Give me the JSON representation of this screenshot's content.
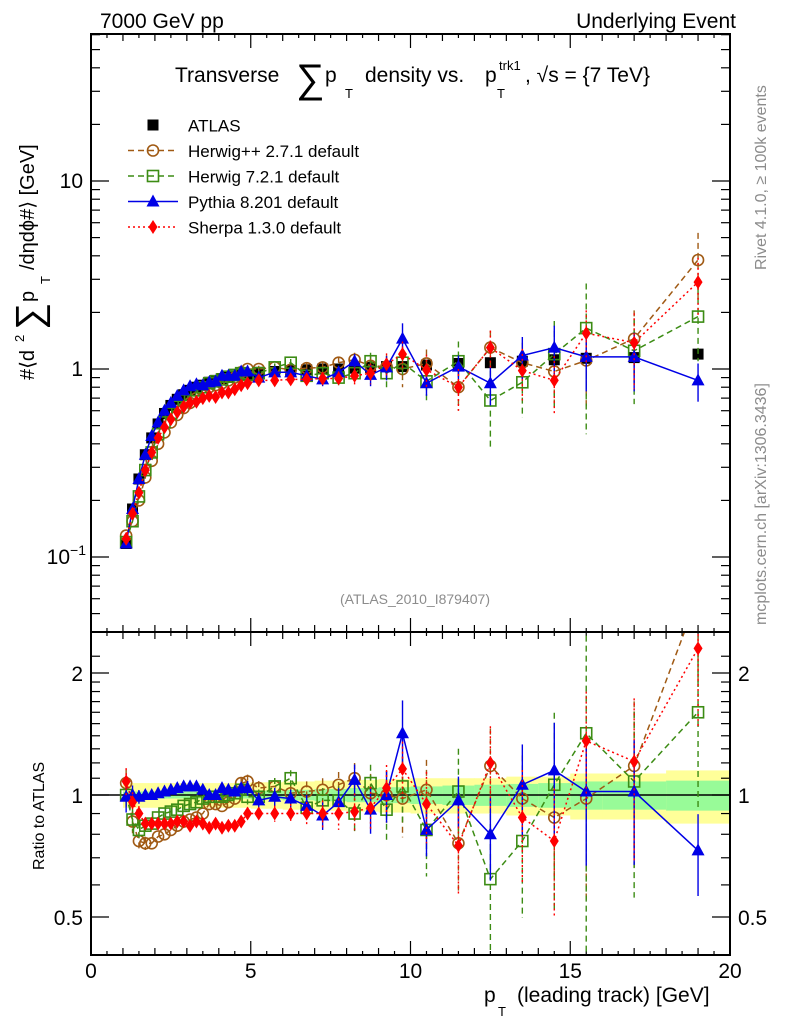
{
  "header": {
    "left": "7000 GeV pp",
    "right": "Underlying Event"
  },
  "side_labels": {
    "rivet": "Rivet 4.1.0, ≥ 100k events",
    "mcplots": "mcplots.cern.ch [arXiv:1306.3436]"
  },
  "chart_data": [
    {
      "type": "scatter",
      "panel": "main",
      "title": "Transverse ∑ p_T density vs. p_T^trk1, √s = {7 TeV}",
      "title_parts": {
        "a": "Transverse",
        "sigma": "∑",
        "p": "p",
        "T": "T",
        "b": "density vs.",
        "p2": "p",
        "sup": "trk1",
        "T2": "T",
        "c": ", √s = {7 TeV}"
      },
      "ylabel": "#⟨d² ∑ p_T /dηdϕ#⟩ [GeV]",
      "ylabel_parts": {
        "a": "#⟨d",
        "sq": "2",
        "sigma": "∑",
        "p": "p",
        "T": "T",
        "b": "/dηdϕ#⟩ [GeV]"
      },
      "yscale": "log",
      "ylim": [
        0.04,
        60
      ],
      "xlim": [
        0,
        20
      ],
      "yticks": [
        {
          "v": 0.1,
          "label": "10",
          "sup": "−1"
        },
        {
          "v": 1,
          "label": "1",
          "sup": ""
        },
        {
          "v": 10,
          "label": "10",
          "sup": ""
        }
      ],
      "watermark": "(ATLAS_2010_I879407)",
      "legend_position": "top-left",
      "x": [
        1.1,
        1.3,
        1.5,
        1.7,
        1.9,
        2.1,
        2.3,
        2.5,
        2.7,
        2.9,
        3.1,
        3.3,
        3.5,
        3.7,
        3.9,
        4.1,
        4.3,
        4.5,
        4.7,
        4.9,
        5.25,
        5.75,
        6.25,
        6.75,
        7.25,
        7.75,
        8.25,
        8.75,
        9.25,
        9.75,
        10.5,
        11.5,
        12.5,
        13.5,
        14.5,
        15.5,
        17,
        19
      ],
      "series": [
        {
          "name": "ATLAS",
          "key": "atlas",
          "color": "#000000",
          "marker": "square-filled",
          "line": "none",
          "values": [
            0.118,
            0.18,
            0.26,
            0.35,
            0.43,
            0.51,
            0.58,
            0.64,
            0.69,
            0.73,
            0.77,
            0.8,
            0.82,
            0.85,
            0.87,
            0.89,
            0.91,
            0.92,
            0.93,
            0.94,
            0.96,
            0.97,
            0.98,
            0.99,
            1.0,
            1.0,
            1.01,
            1.02,
            1.03,
            1.03,
            1.05,
            1.07,
            1.08,
            1.1,
            1.12,
            1.14,
            1.15,
            1.2
          ]
        },
        {
          "name": "Herwig++ 2.7.1 default",
          "key": "herwigpp",
          "color": "#a05a14",
          "marker": "circle-open",
          "line": "dashed",
          "values": [
            0.13,
            0.155,
            0.2,
            0.265,
            0.325,
            0.4,
            0.46,
            0.52,
            0.57,
            0.62,
            0.66,
            0.7,
            0.76,
            0.8,
            0.82,
            0.84,
            0.87,
            0.9,
            0.96,
            1.0,
            1.0,
            1.02,
            0.99,
            1.01,
            1.02,
            1.08,
            1.12,
            1.04,
            1.03,
            1.0,
            1.07,
            0.8,
            1.3,
            1.08,
            0.97,
            1.11,
            1.45,
            3.8
          ],
          "errors": [
            0.01,
            0.01,
            0.01,
            0.01,
            0.01,
            0.01,
            0.01,
            0.01,
            0.01,
            0.01,
            0.01,
            0.01,
            0.01,
            0.01,
            0.01,
            0.01,
            0.02,
            0.02,
            0.03,
            0.04,
            0.04,
            0.05,
            0.05,
            0.06,
            0.07,
            0.08,
            0.1,
            0.12,
            0.15,
            0.2,
            0.2,
            0.2,
            0.3,
            0.3,
            0.3,
            0.5,
            0.6,
            1.5
          ]
        },
        {
          "name": "Herwig 7.2.1 default",
          "key": "herwig7",
          "color": "#3c8c14",
          "marker": "square-open",
          "line": "dashed",
          "values": [
            0.12,
            0.155,
            0.21,
            0.29,
            0.36,
            0.45,
            0.52,
            0.58,
            0.63,
            0.68,
            0.73,
            0.77,
            0.8,
            0.84,
            0.86,
            0.88,
            0.91,
            0.93,
            0.95,
            0.93,
            0.95,
            1.02,
            1.08,
            0.92,
            0.95,
            0.9,
            0.95,
            1.1,
            0.95,
            1.08,
            0.86,
            1.1,
            0.68,
            0.85,
            1.2,
            1.65,
            1.25,
            1.9
          ],
          "errors": [
            0.01,
            0.01,
            0.01,
            0.01,
            0.01,
            0.01,
            0.01,
            0.01,
            0.01,
            0.01,
            0.01,
            0.01,
            0.01,
            0.01,
            0.01,
            0.01,
            0.02,
            0.02,
            0.03,
            0.04,
            0.04,
            0.05,
            0.05,
            0.06,
            0.07,
            0.08,
            0.1,
            0.12,
            0.15,
            0.2,
            0.2,
            0.3,
            0.3,
            0.3,
            0.6,
            1.2,
            0.6,
            0.8
          ]
        },
        {
          "name": "Pythia 8.201 default",
          "key": "pythia",
          "color": "#0000e6",
          "marker": "triangle-filled",
          "line": "solid",
          "values": [
            0.118,
            0.18,
            0.26,
            0.35,
            0.44,
            0.52,
            0.6,
            0.66,
            0.72,
            0.77,
            0.81,
            0.83,
            0.82,
            0.85,
            0.86,
            0.92,
            0.92,
            0.92,
            0.97,
            0.97,
            0.9,
            0.96,
            0.96,
            0.92,
            0.88,
            0.96,
            1.1,
            0.93,
            1.02,
            1.45,
            0.84,
            1.03,
            0.84,
            1.18,
            1.3,
            1.16,
            1.16,
            0.87
          ],
          "errors": [
            0.01,
            0.01,
            0.01,
            0.01,
            0.01,
            0.01,
            0.01,
            0.01,
            0.01,
            0.01,
            0.01,
            0.01,
            0.01,
            0.01,
            0.01,
            0.02,
            0.02,
            0.02,
            0.03,
            0.04,
            0.04,
            0.05,
            0.05,
            0.06,
            0.07,
            0.08,
            0.1,
            0.12,
            0.15,
            0.3,
            0.12,
            0.15,
            0.2,
            0.3,
            0.4,
            0.4,
            0.4,
            0.2
          ]
        },
        {
          "name": "Sherpa 1.3.0 default",
          "key": "sherpa",
          "color": "#ff0000",
          "marker": "diamond-filled",
          "line": "dotted",
          "values": [
            0.125,
            0.17,
            0.22,
            0.29,
            0.36,
            0.43,
            0.49,
            0.54,
            0.59,
            0.63,
            0.66,
            0.67,
            0.7,
            0.72,
            0.71,
            0.75,
            0.75,
            0.78,
            0.82,
            0.84,
            0.87,
            0.87,
            0.88,
            0.88,
            0.89,
            0.89,
            0.92,
            0.95,
            1.06,
            1.2,
            0.99,
            0.8,
            1.3,
            0.98,
            0.87,
            1.55,
            1.38,
            2.9
          ],
          "errors": [
            0.01,
            0.01,
            0.01,
            0.01,
            0.01,
            0.01,
            0.01,
            0.01,
            0.01,
            0.01,
            0.01,
            0.01,
            0.01,
            0.01,
            0.01,
            0.01,
            0.02,
            0.02,
            0.02,
            0.03,
            0.03,
            0.04,
            0.05,
            0.06,
            0.07,
            0.08,
            0.1,
            0.12,
            0.15,
            0.2,
            0.2,
            0.2,
            0.3,
            0.3,
            0.3,
            0.5,
            0.6,
            1.0
          ]
        }
      ]
    },
    {
      "type": "scatter",
      "panel": "ratio",
      "ylabel": "Ratio to ATLAS",
      "xlabel": "p_T (leading track) [GeV]",
      "xlabel_parts": {
        "p": "p",
        "T": "T",
        "rest": "(leading track) [GeV]"
      },
      "yscale": "log",
      "ylim": [
        0.4,
        2.3
      ],
      "xlim": [
        0,
        20
      ],
      "yticks": [
        {
          "v": 0.5,
          "label": "0.5"
        },
        {
          "v": 1,
          "label": "1"
        },
        {
          "v": 2,
          "label": "2"
        }
      ],
      "xticks": [
        {
          "v": 0,
          "label": "0"
        },
        {
          "v": 5,
          "label": "5"
        },
        {
          "v": 10,
          "label": "10"
        },
        {
          "v": 15,
          "label": "15"
        },
        {
          "v": 20,
          "label": "20"
        }
      ],
      "band": {
        "x_edges": [
          1.0,
          1.2,
          1.4,
          1.6,
          1.8,
          2.0,
          2.2,
          2.4,
          2.6,
          2.8,
          3.0,
          3.2,
          3.4,
          3.6,
          3.8,
          4.0,
          4.2,
          4.4,
          4.6,
          4.8,
          5.0,
          5.5,
          6.0,
          6.5,
          7.0,
          7.5,
          8.0,
          8.5,
          9.0,
          9.5,
          10.0,
          11.0,
          12.0,
          13.0,
          14.0,
          15.0,
          16.0,
          18.0,
          20.0
        ],
        "stat_half": [
          0.02,
          0.02,
          0.02,
          0.02,
          0.02,
          0.02,
          0.02,
          0.02,
          0.02,
          0.02,
          0.02,
          0.02,
          0.02,
          0.02,
          0.02,
          0.02,
          0.02,
          0.02,
          0.02,
          0.02,
          0.025,
          0.025,
          0.03,
          0.03,
          0.035,
          0.035,
          0.04,
          0.04,
          0.045,
          0.045,
          0.05,
          0.055,
          0.06,
          0.065,
          0.07,
          0.08,
          0.08,
          0.085
        ],
        "total_half": [
          0.07,
          0.07,
          0.07,
          0.07,
          0.07,
          0.07,
          0.07,
          0.07,
          0.07,
          0.07,
          0.07,
          0.07,
          0.07,
          0.07,
          0.07,
          0.07,
          0.07,
          0.07,
          0.07,
          0.07,
          0.075,
          0.075,
          0.08,
          0.08,
          0.085,
          0.085,
          0.09,
          0.09,
          0.095,
          0.095,
          0.1,
          0.1,
          0.1,
          0.11,
          0.11,
          0.13,
          0.13,
          0.15
        ],
        "stat_color": "#98fb98",
        "total_color": "#ffff99"
      },
      "series": [
        {
          "name": "Herwig++ 2.7.1 default",
          "key": "herwigpp",
          "values": [
            1.07,
            0.86,
            0.77,
            0.76,
            0.76,
            0.79,
            0.8,
            0.82,
            0.84,
            0.86,
            0.87,
            0.88,
            0.9,
            0.95,
            0.95,
            0.94,
            0.96,
            0.98,
            1.07,
            1.08,
            1.04,
            1.05,
            1.01,
            1.02,
            1.03,
            1.06,
            1.1,
            1.01,
            1.0,
            0.98,
            1.03,
            0.76,
            1.18,
            0.98,
            0.88,
            0.98,
            1.18,
            3.1
          ]
        },
        {
          "name": "Herwig 7.2.1 default",
          "key": "herwig7",
          "values": [
            1.0,
            0.87,
            0.82,
            0.84,
            0.85,
            0.88,
            0.9,
            0.91,
            0.92,
            0.94,
            0.95,
            0.96,
            0.98,
            0.99,
            0.99,
            0.99,
            1.0,
            1.01,
            1.03,
            0.99,
            0.99,
            1.05,
            1.1,
            0.93,
            0.97,
            0.97,
            0.9,
            1.07,
            0.92,
            1.05,
            0.82,
            1.02,
            0.62,
            0.77,
            1.06,
            1.42,
            1.08,
            1.6
          ]
        },
        {
          "name": "Pythia 8.201 default",
          "key": "pythia",
          "values": [
            0.99,
            1.0,
            0.99,
            1.0,
            1.0,
            1.01,
            1.02,
            1.03,
            1.04,
            1.05,
            1.05,
            1.05,
            1.03,
            1.0,
            1.0,
            1.04,
            1.03,
            1.02,
            1.04,
            1.04,
            0.97,
            0.99,
            0.98,
            0.94,
            0.89,
            0.96,
            1.09,
            0.92,
            1.0,
            1.42,
            0.82,
            0.97,
            0.8,
            1.06,
            1.15,
            1.02,
            1.02,
            0.73
          ]
        },
        {
          "name": "Sherpa 1.3.0 default",
          "key": "sherpa",
          "values": [
            1.08,
            0.96,
            0.9,
            0.85,
            0.85,
            0.85,
            0.85,
            0.85,
            0.86,
            0.86,
            0.84,
            0.86,
            0.85,
            0.83,
            0.85,
            0.83,
            0.84,
            0.84,
            0.86,
            0.9,
            0.9,
            0.9,
            0.9,
            0.9,
            0.9,
            0.9,
            0.91,
            0.93,
            1.04,
            1.16,
            0.95,
            0.75,
            1.2,
            0.88,
            0.77,
            1.36,
            1.21,
            2.3
          ]
        }
      ],
      "reference_line": 1
    }
  ],
  "legend": [
    {
      "label": "ATLAS",
      "key": "atlas"
    },
    {
      "label": "Herwig++ 2.7.1 default",
      "key": "herwigpp"
    },
    {
      "label": "Herwig 7.2.1 default",
      "key": "herwig7"
    },
    {
      "label": "Pythia 8.201 default",
      "key": "pythia"
    },
    {
      "label": "Sherpa 1.3.0 default",
      "key": "sherpa"
    }
  ]
}
